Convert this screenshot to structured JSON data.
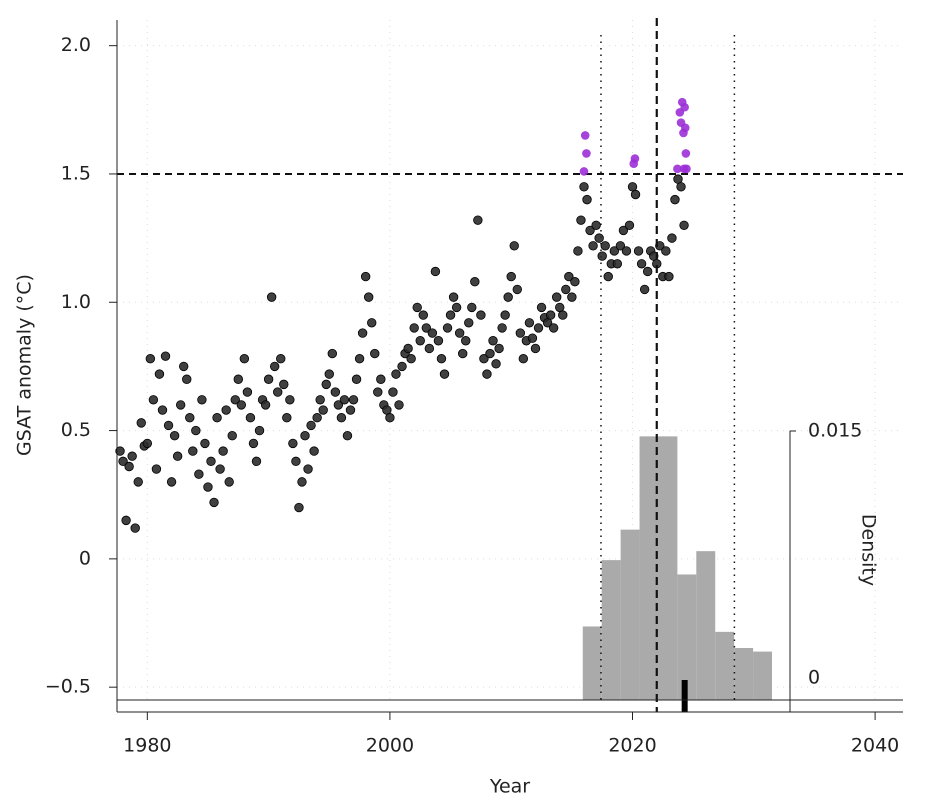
{
  "chart_data": {
    "type": "scatter",
    "xlabel": "Year",
    "ylabel": "GSAT anomaly (°C)",
    "density_label": "Density",
    "xlim": [
      1977.5,
      2042.3
    ],
    "ylim": [
      -0.55,
      2.1
    ],
    "xticks": [
      1980,
      2000,
      2020,
      2040
    ],
    "yticks": [
      {
        "value": -0.5,
        "label": "−0.5"
      },
      0,
      {
        "value": 0.5,
        "label": "0.5"
      },
      {
        "value": 1.0,
        "label": "1.0"
      },
      {
        "value": 1.5,
        "label": "1.5"
      },
      {
        "value": 2.0,
        "label": "2.0"
      }
    ],
    "grid": true,
    "series": [
      {
        "color": "#2b2b2b",
        "x": [
          1977.75,
          1978,
          1978.25,
          1978.5,
          1978.75,
          1979,
          1979.25,
          1979.5,
          1979.75,
          1980,
          1980.25,
          1980.5,
          1980.75,
          1981,
          1981.25,
          1981.5,
          1981.75,
          1982,
          1982.25,
          1982.5,
          1982.75,
          1983,
          1983.25,
          1983.5,
          1983.75,
          1984,
          1984.25,
          1984.5,
          1984.75,
          1985,
          1985.25,
          1985.5,
          1985.75,
          1986,
          1986.25,
          1986.5,
          1986.75,
          1987,
          1987.25,
          1987.5,
          1987.75,
          1988,
          1988.25,
          1988.5,
          1988.75,
          1989,
          1989.25,
          1989.5,
          1989.75,
          1990,
          1990.25,
          1990.5,
          1990.75,
          1991,
          1991.25,
          1991.5,
          1991.75,
          1992,
          1992.25,
          1992.5,
          1992.75,
          1993,
          1993.25,
          1993.5,
          1993.75,
          1994,
          1994.25,
          1994.5,
          1994.75,
          1995,
          1995.25,
          1995.5,
          1995.75,
          1996,
          1996.25,
          1996.5,
          1996.75,
          1997,
          1997.25,
          1997.5,
          1997.75,
          1998,
          1998.25,
          1998.5,
          1998.75,
          1999,
          1999.25,
          1999.5,
          1999.75,
          2000,
          2000.25,
          2000.5,
          2000.75,
          2001,
          2001.25,
          2001.5,
          2001.75,
          2002,
          2002.25,
          2002.5,
          2002.75,
          2003,
          2003.25,
          2003.5,
          2003.75,
          2004,
          2004.25,
          2004.5,
          2004.75,
          2005,
          2005.25,
          2005.5,
          2005.75,
          2006,
          2006.25,
          2006.5,
          2006.75,
          2007,
          2007.25,
          2007.5,
          2007.75,
          2008,
          2008.25,
          2008.5,
          2008.75,
          2009,
          2009.25,
          2009.5,
          2009.75,
          2010,
          2010.25,
          2010.5,
          2010.75,
          2011,
          2011.25,
          2011.5,
          2011.75,
          2012,
          2012.25,
          2012.5,
          2012.75,
          2013,
          2013.25,
          2013.5,
          2013.75,
          2014,
          2014.25,
          2014.5,
          2014.75,
          2015,
          2015.25,
          2015.5,
          2015.75,
          2016,
          2016.25,
          2016.5,
          2016.75,
          2017,
          2017.25,
          2017.5,
          2017.75,
          2018,
          2018.25,
          2018.5,
          2018.75,
          2019,
          2019.25,
          2019.5,
          2019.75,
          2020,
          2020.25,
          2020.5,
          2020.75,
          2021,
          2021.25,
          2021.5,
          2021.75,
          2022,
          2022.25,
          2022.5,
          2022.75,
          2023,
          2023.25,
          2023.5,
          2023.75,
          2024,
          2024.25
        ],
        "values": [
          0.42,
          0.38,
          0.15,
          0.36,
          0.4,
          0.12,
          0.3,
          0.53,
          0.44,
          0.45,
          0.78,
          0.62,
          0.35,
          0.72,
          0.58,
          0.79,
          0.52,
          0.3,
          0.48,
          0.4,
          0.6,
          0.75,
          0.7,
          0.55,
          0.42,
          0.5,
          0.33,
          0.62,
          0.45,
          0.28,
          0.38,
          0.22,
          0.55,
          0.35,
          0.42,
          0.58,
          0.3,
          0.48,
          0.62,
          0.7,
          0.6,
          0.78,
          0.65,
          0.55,
          0.45,
          0.38,
          0.5,
          0.62,
          0.6,
          0.7,
          1.02,
          0.75,
          0.65,
          0.78,
          0.68,
          0.55,
          0.62,
          0.45,
          0.38,
          0.2,
          0.3,
          0.48,
          0.35,
          0.52,
          0.42,
          0.55,
          0.62,
          0.58,
          0.68,
          0.72,
          0.8,
          0.65,
          0.6,
          0.55,
          0.62,
          0.48,
          0.58,
          0.62,
          0.7,
          0.78,
          0.88,
          1.1,
          1.02,
          0.92,
          0.8,
          0.65,
          0.7,
          0.6,
          0.58,
          0.55,
          0.65,
          0.72,
          0.6,
          0.75,
          0.8,
          0.82,
          0.78,
          0.9,
          0.98,
          0.85,
          0.95,
          0.9,
          0.82,
          0.88,
          1.12,
          0.85,
          0.78,
          0.72,
          0.9,
          0.95,
          1.02,
          0.98,
          0.88,
          0.8,
          0.85,
          0.92,
          0.98,
          1.08,
          1.32,
          0.95,
          0.78,
          0.72,
          0.8,
          0.85,
          0.76,
          0.82,
          0.9,
          0.95,
          1.02,
          1.1,
          1.22,
          1.05,
          0.88,
          0.78,
          0.85,
          0.92,
          0.86,
          0.82,
          0.9,
          0.98,
          0.94,
          0.92,
          0.95,
          0.9,
          1.02,
          0.98,
          0.95,
          1.05,
          1.1,
          1.02,
          1.08,
          1.2,
          1.32,
          1.45,
          1.4,
          1.28,
          1.22,
          1.3,
          1.25,
          1.18,
          1.22,
          1.1,
          1.15,
          1.2,
          1.15,
          1.22,
          1.28,
          1.2,
          1.3,
          1.45,
          1.42,
          1.2,
          1.15,
          1.05,
          1.12,
          1.2,
          1.18,
          1.15,
          1.22,
          1.1,
          1.2,
          1.1,
          1.25,
          1.4,
          1.48,
          1.45,
          1.3
        ]
      },
      {
        "color": "#9b2fd6",
        "x": [
          2016.0,
          2016.1,
          2016.2,
          2020.1,
          2020.2,
          2023.7,
          2023.9,
          2024.0,
          2024.1,
          2024.2,
          2024.25,
          2024.3,
          2024.35,
          2024.4,
          2024.45
        ],
        "values": [
          1.51,
          1.65,
          1.58,
          1.54,
          1.56,
          1.52,
          1.74,
          1.7,
          1.78,
          1.66,
          1.52,
          1.76,
          1.68,
          1.58,
          1.52
        ]
      }
    ],
    "reference_lines": {
      "dashed_y": 1.5,
      "dashed_x": 2022,
      "dotted_x": [
        2017.4,
        2028.4
      ]
    },
    "marker_x": 2024.3,
    "histogram": {
      "color": "#aaaaaa",
      "bins": [
        2015.9,
        2017.46,
        2019.02,
        2020.58,
        2022.14,
        2023.7,
        2025.26,
        2026.82,
        2028.38,
        2029.94,
        2031.5
      ],
      "counts": [
        0.0041,
        0.0078,
        0.0095,
        0.0147,
        0.0147,
        0.007,
        0.0083,
        0.0038,
        0.0029,
        0.0027
      ],
      "ylim": [
        0,
        0.015
      ],
      "yticks": [
        0,
        0.015
      ]
    }
  }
}
